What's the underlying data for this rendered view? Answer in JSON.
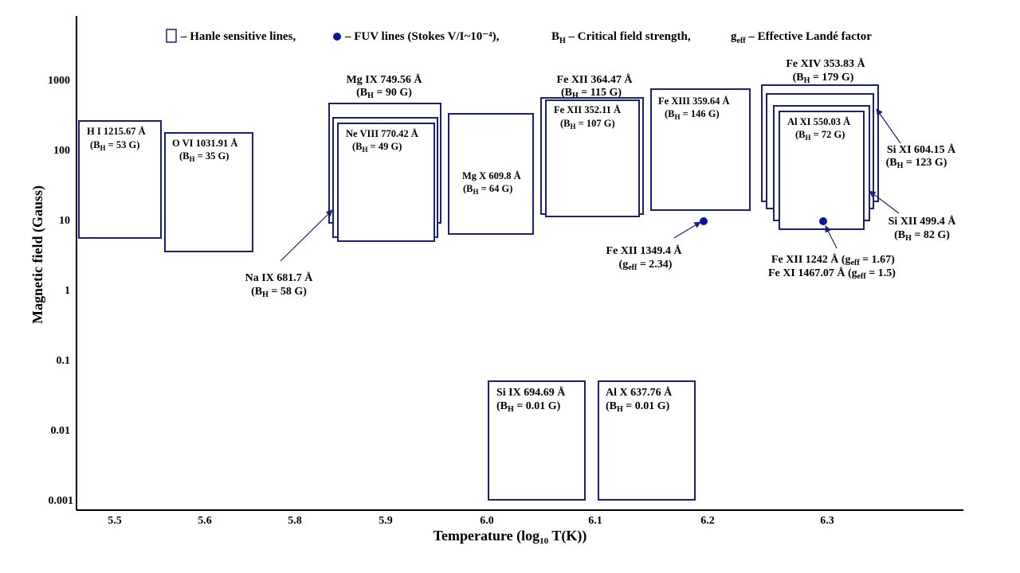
{
  "chart_data": {
    "type": "scatter",
    "title": "",
    "xlabel": "Temperature (log10 T(K))",
    "ylabel": "Magnetic field (Gauss)",
    "y_scale": "log",
    "x_ticks": [
      "5.5",
      "5.6",
      "5.8",
      "5.9",
      "6.0",
      "6.1",
      "6.2",
      "6.3"
    ],
    "y_ticks": [
      "0.001",
      "0.01",
      "0.1",
      "1",
      "10",
      "100",
      "1000"
    ],
    "legend": {
      "hanle": "– Hanle sensitive lines,",
      "fuv": "– FUV  lines (Stokes V/I~10⁻⁴),",
      "bh": "B_H – Critical field strength,",
      "geff": "g_eff – Effective Landé factor"
    },
    "hanle_lines": [
      {
        "label": "H I 1215.67 Å",
        "bh": "53 G",
        "log_t": 5.5,
        "bh_gauss": 53
      },
      {
        "label": "O VI 1031.91 Å",
        "bh": "35 G",
        "log_t": 5.6,
        "bh_gauss": 35
      },
      {
        "label": "Mg IX 749.56 Å",
        "bh": "90 G",
        "log_t": 5.9,
        "bh_gauss": 90
      },
      {
        "label": "Ne VIII 770.42 Å",
        "bh": "49 G",
        "log_t": 5.9,
        "bh_gauss": 49
      },
      {
        "label": "Na IX 681.7 Å",
        "bh": "58 G",
        "log_t": 5.9,
        "bh_gauss": 58
      },
      {
        "label": "Mg X 609.8 Å",
        "bh": "64 G",
        "log_t": 6.0,
        "bh_gauss": 64
      },
      {
        "label": "Fe XII 364.47 Å",
        "bh": "115 G",
        "log_t": 6.1,
        "bh_gauss": 115
      },
      {
        "label": "Fe XII 352.11 Å",
        "bh": "107 G",
        "log_t": 6.1,
        "bh_gauss": 107
      },
      {
        "label": "Fe XIII 359.64 Å",
        "bh": "146 G",
        "log_t": 6.2,
        "bh_gauss": 146
      },
      {
        "label": "Fe XIV 353.83 Å",
        "bh": "179 G",
        "log_t": 6.3,
        "bh_gauss": 179
      },
      {
        "label": "Si XI 604.15 Å",
        "bh": "123 G",
        "log_t": 6.3,
        "bh_gauss": 123
      },
      {
        "label": "Si XII 499.4 Å",
        "bh": "82 G",
        "log_t": 6.3,
        "bh_gauss": 82
      },
      {
        "label": "Al XI 550.03 Å",
        "bh": "72 G",
        "log_t": 6.3,
        "bh_gauss": 72
      },
      {
        "label": "Si IX 694.69 Å",
        "bh": "0.01 G",
        "log_t": 6.05,
        "bh_gauss": 0.01
      },
      {
        "label": "Al X 637.76 Å",
        "bh": "0.01 G",
        "log_t": 6.15,
        "bh_gauss": 0.01
      }
    ],
    "fuv_lines": [
      {
        "label": "Fe XII 1349.4 Å",
        "geff": "2.34",
        "log_t": 6.2,
        "field_gauss": 10
      },
      {
        "label": "Fe XII 1242 Å",
        "geff": "1.67",
        "log_t": 6.3,
        "field_gauss": 10
      },
      {
        "label": "Fe XI 1467.07 Å",
        "geff": "1.5",
        "log_t": 6.3,
        "field_gauss": 10
      }
    ]
  }
}
